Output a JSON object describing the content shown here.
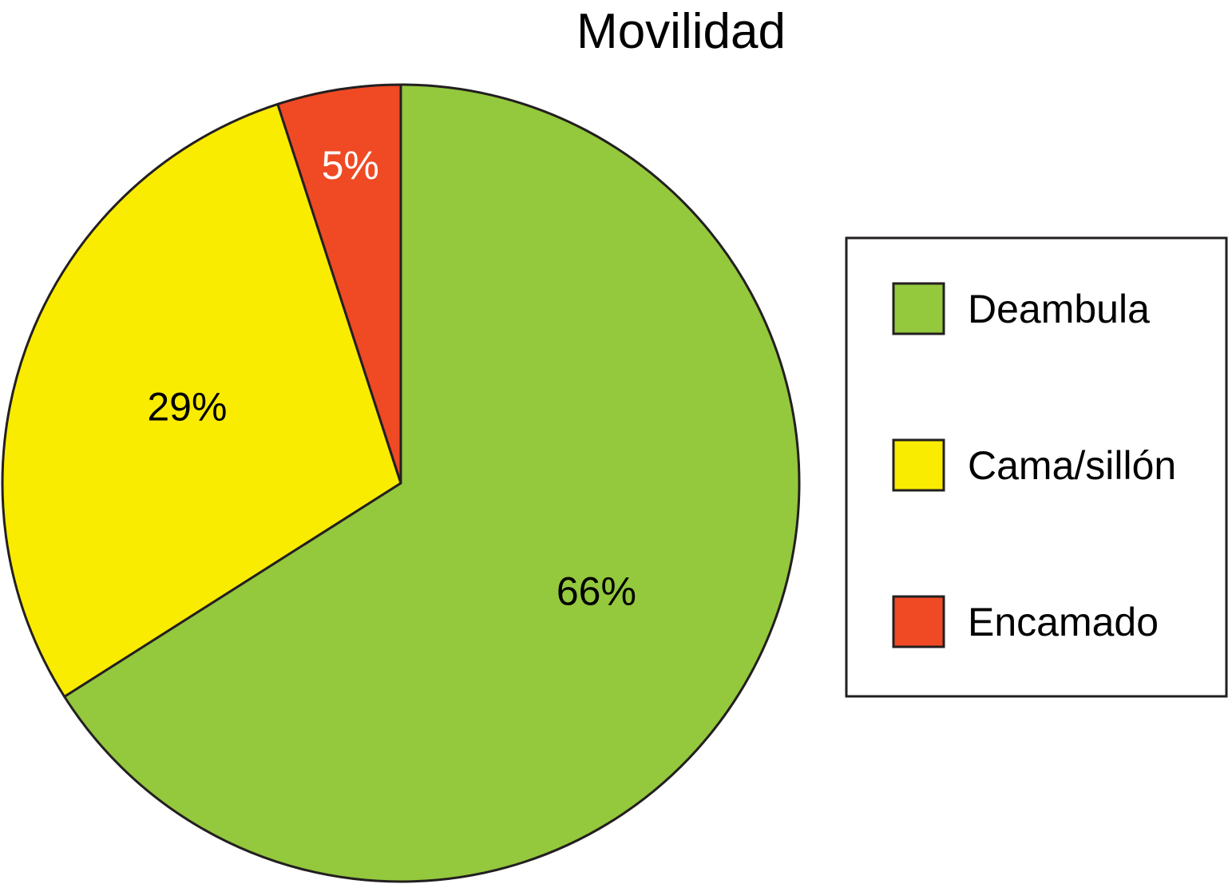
{
  "chart_data": {
    "type": "pie",
    "title": "Movilidad",
    "categories": [
      "Deambula",
      "Cama/sillón",
      "Encamado"
    ],
    "values": [
      66,
      29,
      5
    ],
    "labels": [
      "66%",
      "29%",
      "5%"
    ],
    "colors": [
      "#94C83D",
      "#FAEC00",
      "#EF4A24"
    ],
    "label_colors": [
      "#000000",
      "#000000",
      "#ffffff"
    ],
    "start": "12 o'clock",
    "direction": "clockwise",
    "legend_position": "right"
  }
}
